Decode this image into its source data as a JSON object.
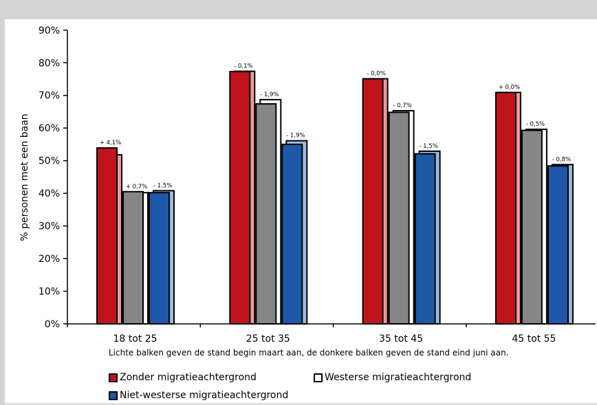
{
  "chart_data": {
    "type": "bar",
    "ylabel": "% personen met een baan",
    "ylim": [
      0,
      90
    ],
    "yticks": [
      "0%",
      "10%",
      "20%",
      "30%",
      "40%",
      "50%",
      "60%",
      "70%",
      "80%",
      "90%"
    ],
    "categories": [
      "18 tot 25",
      "25 tot 35",
      "35 tot 45",
      "45 tot 55"
    ],
    "note": "Lichte balken geven de stand begin maart aan, de donkere balken geven de stand eind juni aan.",
    "grid": false,
    "series": [
      {
        "name": "Zonder migratieachtergrond",
        "light_color": "#e89a9a",
        "dark_color": "#c0141c",
        "values_begin_maart": [
          51.8,
          77.4,
          75.1,
          70.9
        ],
        "values_eind_juni": [
          53.9,
          77.3,
          75.1,
          70.9
        ],
        "change_labels": [
          "+ 4,1%",
          "- 0,1%",
          "- 0,0%",
          "+ 0,0%"
        ]
      },
      {
        "name": "Westerse migratieachtergrond",
        "light_color": "#ffffff",
        "dark_color": "#868686",
        "values_begin_maart": [
          40.2,
          68.7,
          65.3,
          59.6
        ],
        "values_eind_juni": [
          40.5,
          67.4,
          64.8,
          59.3
        ],
        "change_labels": [
          "+ 0,7%",
          "- 1,9%",
          "- 0,7%",
          "- 0,5%"
        ]
      },
      {
        "name": "Niet-westerse migratieachtergrond",
        "light_color": "#9fb8dc",
        "dark_color": "#1e58a8",
        "values_begin_maart": [
          40.8,
          56.1,
          52.9,
          48.8
        ],
        "values_eind_juni": [
          40.2,
          55.0,
          52.1,
          48.4
        ],
        "change_labels": [
          "- 1,5%",
          "- 1,9%",
          "- 1,5%",
          "- 0,8%"
        ]
      }
    ]
  }
}
